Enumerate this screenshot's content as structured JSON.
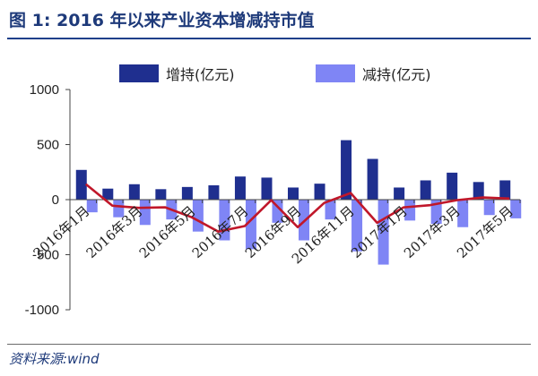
{
  "figure": {
    "title": "图 1:  2016 年以来产业资本增减持市值",
    "source": "资料来源:wind"
  },
  "chart_data": {
    "type": "bar",
    "categories": [
      "2016年1月",
      "2016年2月",
      "2016年3月",
      "2016年4月",
      "2016年5月",
      "2016年6月",
      "2016年7月",
      "2016年8月",
      "2016年9月",
      "2016年10月",
      "2016年11月",
      "2016年12月",
      "2017年1月",
      "2017年2月",
      "2017年3月",
      "2017年4月",
      "2017年5月"
    ],
    "category_labels": [
      "2016年1月",
      "2016年3月",
      "2016年5月",
      "2016年7月",
      "2016年9月",
      "2016年11月",
      "2017年1月",
      "2017年3月",
      "2017年5月"
    ],
    "label_every": 2,
    "series": [
      {
        "name": "增持(亿元)",
        "kind": "bar",
        "color": "#1f2f8f",
        "values": [
          270,
          100,
          140,
          95,
          115,
          130,
          210,
          200,
          110,
          145,
          540,
          370,
          110,
          175,
          245,
          160,
          175
        ]
      },
      {
        "name": "减持(亿元)",
        "kind": "bar",
        "color": "#7f85f5",
        "values": [
          -115,
          -160,
          -230,
          -180,
          -290,
          -370,
          -450,
          -210,
          -370,
          -180,
          -470,
          -590,
          -190,
          -220,
          -250,
          -140,
          -170
        ]
      },
      {
        "kind": "line",
        "color": "#c0172a",
        "values": [
          140,
          -55,
          -75,
          -70,
          -160,
          -290,
          -240,
          -5,
          -250,
          -30,
          60,
          -210,
          -70,
          -50,
          -5,
          20,
          10
        ]
      }
    ],
    "ylim": [
      -1000,
      1000
    ],
    "yticks": [
      1000,
      500,
      0,
      -500,
      -1000
    ],
    "grid": false,
    "legend": "top"
  }
}
